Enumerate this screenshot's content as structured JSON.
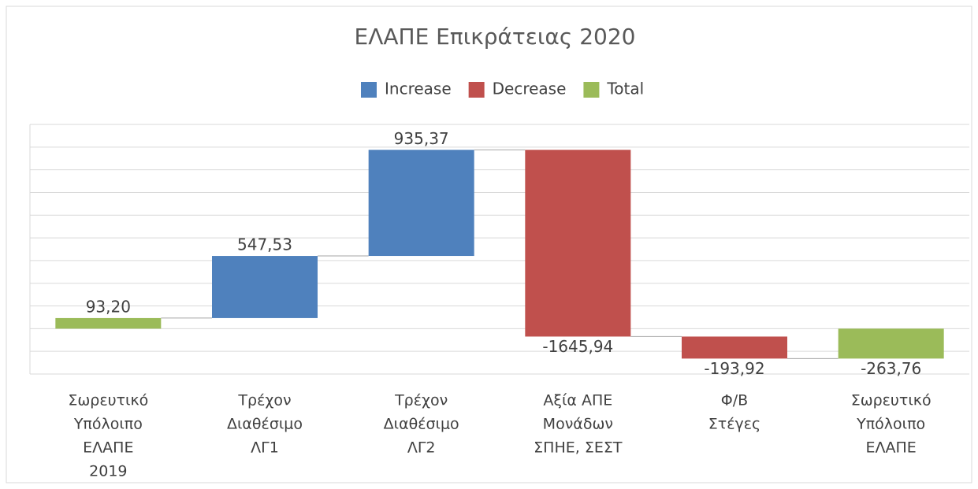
{
  "chart_data": {
    "type": "waterfall",
    "title": "ΕΛΑΠΕ Επικράτειας 2020",
    "categories": [
      [
        "Σωρευτικό",
        "Υπόλοιπο",
        "ΕΛΑΠΕ",
        "2019"
      ],
      [
        "Τρέχον",
        "Διαθέσιμο",
        "ΛΓ1"
      ],
      [
        "Τρέχον",
        "Διαθέσιμο",
        "ΛΓ2"
      ],
      [
        "Αξία ΑΠΕ",
        "Μονάδων",
        "ΣΠΗΕ, ΣΕΣΤ"
      ],
      [
        "Φ/Β",
        "Στέγες"
      ],
      [
        "Σωρευτικό",
        "Υπόλοιπο",
        "ΕΛΑΠΕ"
      ]
    ],
    "values": [
      93.2,
      547.53,
      935.37,
      -1645.94,
      -193.92,
      -263.76
    ],
    "value_labels": [
      "93,20",
      "547,53",
      "935,37",
      "-1645,94",
      "-193,92",
      "-263,76"
    ],
    "is_total": [
      true,
      false,
      false,
      false,
      false,
      true
    ],
    "legend": [
      {
        "name": "Increase",
        "color": "#4f81bd"
      },
      {
        "name": "Decrease",
        "color": "#c0504d"
      },
      {
        "name": "Total",
        "color": "#9bbb59"
      }
    ],
    "ylim": [
      -400,
      1800
    ],
    "yticks": [
      -400,
      -200,
      0,
      200,
      400,
      600,
      800,
      1000,
      1200,
      1400,
      1600,
      1800
    ],
    "grid": true
  }
}
